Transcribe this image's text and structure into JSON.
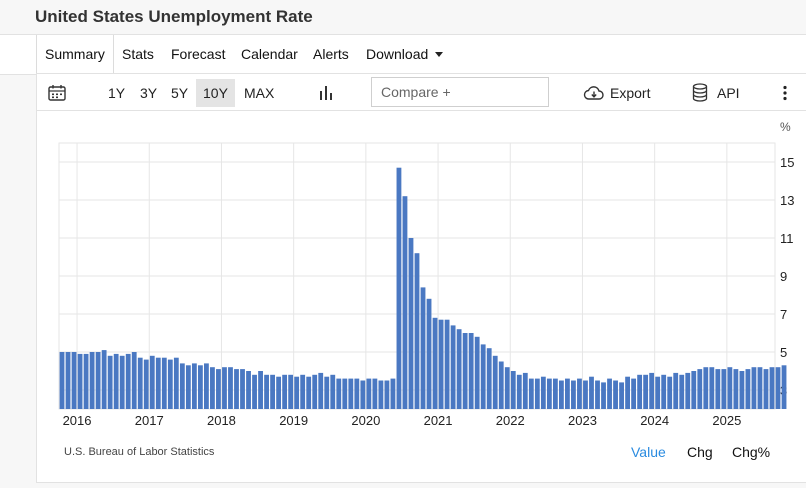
{
  "page": {
    "title": "United States Unemployment Rate"
  },
  "tabs": [
    {
      "label": "Summary"
    },
    {
      "label": "Stats"
    },
    {
      "label": "Forecast"
    },
    {
      "label": "Calendar"
    },
    {
      "label": "Alerts"
    },
    {
      "label": "Download"
    }
  ],
  "toolbar": {
    "ranges": [
      "1Y",
      "3Y",
      "5Y",
      "10Y",
      "MAX"
    ],
    "active_range": "10Y",
    "compare_placeholder": "Compare +",
    "export_label": "Export",
    "api_label": "API"
  },
  "footer": {
    "source": "U.S. Bureau of Labor Statistics",
    "modes": [
      "Value",
      "Chg",
      "Chg%"
    ],
    "active_mode": "Value"
  },
  "colors": {
    "bar": "#4a78c2",
    "accent": "#2a8be0",
    "grid": "#e6e6e6"
  },
  "chart_data": {
    "type": "bar",
    "unit": "%",
    "ylim": [
      2,
      16
    ],
    "yticks": [
      3,
      5,
      7,
      9,
      11,
      13,
      15
    ],
    "xticks": [
      "2016",
      "2017",
      "2018",
      "2019",
      "2020",
      "2021",
      "2022",
      "2023",
      "2024",
      "2025"
    ],
    "grid": true,
    "x_start": "2015-10",
    "x_end": "2025-08",
    "values": [
      5.0,
      5.0,
      5.0,
      4.9,
      4.9,
      5.0,
      5.0,
      5.1,
      4.8,
      4.9,
      4.8,
      4.9,
      5.0,
      4.7,
      4.6,
      4.8,
      4.7,
      4.7,
      4.6,
      4.7,
      4.4,
      4.3,
      4.4,
      4.3,
      4.4,
      4.2,
      4.1,
      4.2,
      4.2,
      4.1,
      4.1,
      4.0,
      3.8,
      4.0,
      3.8,
      3.8,
      3.7,
      3.8,
      3.8,
      3.7,
      3.8,
      3.7,
      3.8,
      3.9,
      3.7,
      3.8,
      3.6,
      3.6,
      3.6,
      3.6,
      3.5,
      3.6,
      3.6,
      3.5,
      3.5,
      3.6,
      14.7,
      13.2,
      11.0,
      10.2,
      8.4,
      7.8,
      6.8,
      6.7,
      6.7,
      6.4,
      6.2,
      6.0,
      6.0,
      5.8,
      5.4,
      5.2,
      4.8,
      4.5,
      4.2,
      4.0,
      3.8,
      3.9,
      3.6,
      3.6,
      3.7,
      3.6,
      3.6,
      3.5,
      3.6,
      3.5,
      3.6,
      3.5,
      3.7,
      3.5,
      3.4,
      3.6,
      3.5,
      3.4,
      3.7,
      3.6,
      3.8,
      3.8,
      3.9,
      3.7,
      3.8,
      3.7,
      3.9,
      3.8,
      3.9,
      4.0,
      4.1,
      4.2,
      4.2,
      4.1,
      4.1,
      4.2,
      4.1,
      4.0,
      4.1,
      4.2,
      4.2,
      4.1,
      4.2,
      4.2,
      4.3
    ]
  }
}
